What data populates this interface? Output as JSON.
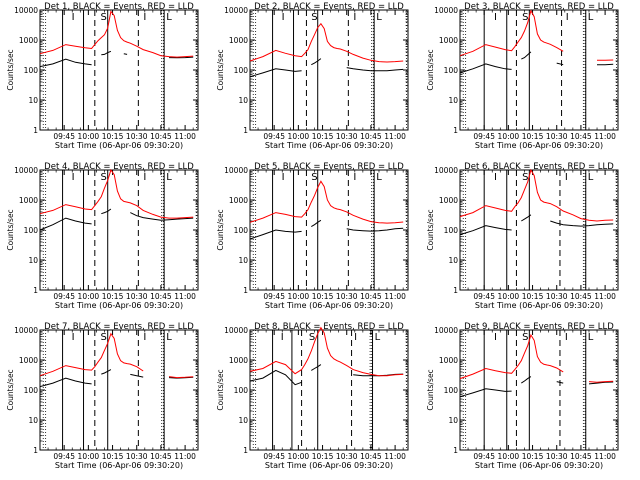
{
  "colors": {
    "events": "#000000",
    "lld": "#ff0000",
    "background": "#ffffff"
  },
  "shared": {
    "xlabel": "Start Time (06-Apr-06 09:30:20)",
    "ylabel": "Counts/sec",
    "x_ticks": [
      "09:45",
      "10:00",
      "10:15",
      "10:30",
      "10:45",
      "11:00"
    ],
    "y_ticks": [
      "1",
      "10",
      "100",
      "1000",
      "10000"
    ],
    "region_labels": [
      "I",
      "S",
      "I",
      "L"
    ]
  },
  "chart_data": [
    {
      "type": "line",
      "title": "Det 1, BLACK = Events, RED = LLD",
      "x": [
        "09:30",
        "09:38",
        "09:46",
        "09:52",
        "09:58",
        "10:02",
        "10:04",
        "10:06",
        "10:08",
        "10:10",
        "10:12",
        "10:14",
        "10:16",
        "10:18",
        "10:20",
        "10:22",
        "10:24",
        "10:26",
        "10:30",
        "10:34",
        "10:40",
        "10:45",
        "10:50",
        "10:55",
        "11:00",
        "11:05"
      ],
      "series": [
        {
          "name": "BLACK = Events",
          "values": [
            130,
            160,
            230,
            180,
            160,
            150,
            null,
            null,
            320,
            330,
            380,
            420,
            null,
            null,
            null,
            350,
            330,
            null,
            null,
            270,
            null,
            null,
            260,
            255,
            260,
            270
          ]
        },
        {
          "name": "RED = LLD",
          "values": [
            350,
            450,
            700,
            620,
            550,
            520,
            700,
            950,
            1200,
            1500,
            2500,
            9000,
            6500,
            2100,
            1200,
            950,
            850,
            780,
            620,
            480,
            380,
            300,
            280,
            270,
            280,
            290
          ]
        }
      ],
      "ylim": [
        1,
        10000
      ],
      "yscale": "log",
      "xlim": [
        "09:30",
        "11:08"
      ],
      "boundaries": [
        "09:44",
        "09:57",
        "10:04",
        "10:12",
        "10:31",
        "10:47"
      ]
    },
    {
      "type": "line",
      "title": "Det 2, BLACK = Events, RED = LLD",
      "x": [
        "09:30",
        "09:38",
        "09:46",
        "09:52",
        "09:58",
        "10:02",
        "10:04",
        "10:06",
        "10:08",
        "10:10",
        "10:12",
        "10:14",
        "10:16",
        "10:18",
        "10:20",
        "10:22",
        "10:24",
        "10:26",
        "10:30",
        "10:34",
        "10:40",
        "10:45",
        "10:50",
        "10:55",
        "11:00",
        "11:05"
      ],
      "series": [
        {
          "name": "BLACK = Events",
          "values": [
            60,
            80,
            110,
            100,
            90,
            95,
            null,
            null,
            150,
            170,
            200,
            240,
            null,
            null,
            null,
            null,
            null,
            null,
            120,
            110,
            100,
            95,
            95,
            95,
            100,
            105
          ]
        },
        {
          "name": "RED = LLD",
          "values": [
            200,
            280,
            450,
            360,
            300,
            280,
            360,
            480,
            900,
            1500,
            2600,
            3500,
            2400,
            900,
            650,
            560,
            520,
            500,
            420,
            330,
            250,
            210,
            190,
            185,
            190,
            200
          ]
        }
      ],
      "ylim": [
        1,
        10000
      ],
      "yscale": "log",
      "xlim": [
        "09:30",
        "11:08"
      ],
      "boundaries": [
        "09:44",
        "09:57",
        "10:05",
        "10:12",
        "10:31",
        "10:47"
      ]
    },
    {
      "type": "line",
      "title": "Det 3, BLACK = Events, RED = LLD",
      "x": [
        "09:30",
        "09:38",
        "09:46",
        "09:52",
        "09:58",
        "10:02",
        "10:04",
        "10:06",
        "10:08",
        "10:10",
        "10:12",
        "10:14",
        "10:16",
        "10:18",
        "10:20",
        "10:22",
        "10:24",
        "10:26",
        "10:30",
        "10:34",
        "10:40",
        "10:45",
        "10:50",
        "10:55",
        "11:00",
        "11:05"
      ],
      "series": [
        {
          "name": "BLACK = Events",
          "values": [
            80,
            110,
            160,
            130,
            110,
            105,
            null,
            null,
            230,
            260,
            320,
            400,
            null,
            null,
            null,
            null,
            null,
            null,
            170,
            150,
            null,
            null,
            null,
            150,
            150,
            155
          ]
        },
        {
          "name": "RED = LLD",
          "values": [
            300,
            420,
            700,
            580,
            480,
            440,
            600,
            850,
            1200,
            2000,
            3800,
            9500,
            6000,
            1600,
            1000,
            850,
            780,
            720,
            560,
            420,
            null,
            null,
            null,
            210,
            210,
            215
          ]
        }
      ],
      "ylim": [
        1,
        10000
      ],
      "yscale": "log",
      "xlim": [
        "09:30",
        "11:08"
      ],
      "boundaries": [
        "09:45",
        "09:59",
        "10:05",
        "10:13",
        "10:33",
        "10:48"
      ]
    },
    {
      "type": "line",
      "title": "Det 4, BLACK = Events, RED = LLD",
      "x": [
        "09:30",
        "09:38",
        "09:46",
        "09:52",
        "09:58",
        "10:02",
        "10:04",
        "10:06",
        "10:08",
        "10:10",
        "10:12",
        "10:14",
        "10:16",
        "10:18",
        "10:20",
        "10:22",
        "10:24",
        "10:26",
        "10:30",
        "10:34",
        "10:40",
        "10:45",
        "10:50",
        "10:55",
        "11:00",
        "11:05"
      ],
      "series": [
        {
          "name": "BLACK = Events",
          "values": [
            100,
            150,
            250,
            200,
            170,
            160,
            null,
            null,
            350,
            380,
            420,
            500,
            null,
            null,
            null,
            null,
            null,
            380,
            300,
            260,
            230,
            210,
            220,
            230,
            240,
            250
          ]
        },
        {
          "name": "RED = LLD",
          "values": [
            350,
            450,
            700,
            600,
            500,
            480,
            650,
            900,
            1300,
            2500,
            4500,
            10000,
            7000,
            2000,
            1100,
            900,
            850,
            800,
            650,
            450,
            330,
            270,
            250,
            250,
            260,
            270
          ]
        }
      ],
      "ylim": [
        1,
        10000
      ],
      "yscale": "log",
      "xlim": [
        "09:30",
        "11:08"
      ],
      "boundaries": [
        "09:44",
        "09:57",
        "10:04",
        "10:12",
        "10:31",
        "10:47"
      ]
    },
    {
      "type": "line",
      "title": "Det 5, BLACK = Events, RED = LLD",
      "x": [
        "09:30",
        "09:38",
        "09:46",
        "09:52",
        "09:58",
        "10:02",
        "10:04",
        "10:06",
        "10:08",
        "10:10",
        "10:12",
        "10:14",
        "10:16",
        "10:18",
        "10:20",
        "10:22",
        "10:24",
        "10:26",
        "10:30",
        "10:34",
        "10:40",
        "10:45",
        "10:50",
        "10:55",
        "11:00",
        "11:05"
      ],
      "series": [
        {
          "name": "BLACK = Events",
          "values": [
            50,
            70,
            100,
            90,
            85,
            90,
            null,
            null,
            130,
            150,
            180,
            210,
            null,
            null,
            null,
            null,
            null,
            null,
            110,
            100,
            95,
            92,
            95,
            100,
            110,
            115
          ]
        },
        {
          "name": "RED = LLD",
          "values": [
            180,
            250,
            380,
            330,
            280,
            270,
            350,
            480,
            850,
            1400,
            2600,
            4200,
            2800,
            1000,
            650,
            550,
            500,
            480,
            400,
            310,
            230,
            190,
            175,
            170,
            175,
            185
          ]
        }
      ],
      "ylim": [
        1,
        10000
      ],
      "yscale": "log",
      "xlim": [
        "09:30",
        "11:08"
      ],
      "boundaries": [
        "09:44",
        "09:57",
        "10:05",
        "10:12",
        "10:31",
        "10:47"
      ]
    },
    {
      "type": "line",
      "title": "Det 6, BLACK = Events, RED = LLD",
      "x": [
        "09:30",
        "09:38",
        "09:46",
        "09:52",
        "09:58",
        "10:02",
        "10:04",
        "10:06",
        "10:08",
        "10:10",
        "10:12",
        "10:14",
        "10:16",
        "10:18",
        "10:20",
        "10:22",
        "10:24",
        "10:26",
        "10:30",
        "10:34",
        "10:40",
        "10:45",
        "10:50",
        "10:55",
        "11:00",
        "11:05"
      ],
      "series": [
        {
          "name": "BLACK = Events",
          "values": [
            70,
            95,
            140,
            120,
            105,
            100,
            null,
            null,
            200,
            230,
            270,
            320,
            null,
            null,
            null,
            null,
            null,
            200,
            170,
            150,
            140,
            135,
            140,
            150,
            155,
            160
          ]
        },
        {
          "name": "RED = LLD",
          "values": [
            280,
            380,
            650,
            540,
            450,
            420,
            600,
            800,
            1200,
            2200,
            4000,
            10000,
            6500,
            1800,
            1000,
            850,
            800,
            760,
            600,
            430,
            320,
            240,
            210,
            200,
            210,
            215
          ]
        }
      ],
      "ylim": [
        1,
        10000
      ],
      "yscale": "log",
      "xlim": [
        "09:30",
        "11:08"
      ],
      "boundaries": [
        "09:45",
        "09:59",
        "10:05",
        "10:13",
        "10:32",
        "10:48"
      ]
    },
    {
      "type": "line",
      "title": "Det 7, BLACK = Events, RED = LLD",
      "x": [
        "09:30",
        "09:38",
        "09:46",
        "09:52",
        "09:58",
        "10:02",
        "10:04",
        "10:06",
        "10:08",
        "10:10",
        "10:12",
        "10:14",
        "10:16",
        "10:18",
        "10:20",
        "10:22",
        "10:24",
        "10:26",
        "10:30",
        "10:34",
        "10:40",
        "10:45",
        "10:50",
        "10:55",
        "11:00",
        "11:05"
      ],
      "series": [
        {
          "name": "BLACK = Events",
          "values": [
            130,
            170,
            250,
            200,
            170,
            160,
            null,
            null,
            340,
            370,
            420,
            480,
            null,
            null,
            null,
            null,
            null,
            330,
            300,
            270,
            null,
            null,
            260,
            250,
            255,
            265
          ]
        },
        {
          "name": "RED = LLD",
          "values": [
            300,
            420,
            650,
            560,
            480,
            460,
            600,
            850,
            1200,
            2100,
            3600,
            7500,
            5200,
            1600,
            950,
            800,
            760,
            730,
            600,
            430,
            null,
            null,
            280,
            260,
            265,
            275
          ]
        }
      ],
      "ylim": [
        1,
        10000
      ],
      "yscale": "log",
      "xlim": [
        "09:30",
        "11:08"
      ],
      "boundaries": [
        "09:44",
        "09:57",
        "10:04",
        "10:12",
        "10:31",
        "10:47"
      ]
    },
    {
      "type": "line",
      "title": "Det 8, BLACK = Events, RED = LLD",
      "x": [
        "09:30",
        "09:38",
        "09:46",
        "09:52",
        "09:58",
        "10:02",
        "10:04",
        "10:06",
        "10:08",
        "10:10",
        "10:12",
        "10:14",
        "10:16",
        "10:18",
        "10:20",
        "10:22",
        "10:24",
        "10:26",
        "10:30",
        "10:34",
        "10:40",
        "10:45",
        "10:50",
        "10:55",
        "11:00",
        "11:05"
      ],
      "series": [
        {
          "name": "BLACK = Events",
          "values": [
            200,
            250,
            450,
            320,
            150,
            180,
            null,
            null,
            450,
            520,
            600,
            700,
            null,
            null,
            null,
            null,
            null,
            null,
            null,
            320,
            300,
            300,
            300,
            310,
            330,
            340
          ]
        },
        {
          "name": "RED = LLD",
          "values": [
            420,
            520,
            900,
            700,
            350,
            480,
            700,
            1100,
            2000,
            4000,
            7500,
            12000,
            8000,
            2500,
            1400,
            1100,
            950,
            850,
            650,
            480,
            380,
            330,
            300,
            300,
            320,
            330
          ]
        }
      ],
      "ylim": [
        1,
        10000
      ],
      "yscale": "log",
      "xlim": [
        "09:30",
        "11:08"
      ],
      "boundaries": [
        "09:44",
        "09:56",
        "10:02",
        "10:12",
        "10:33",
        "10:46"
      ]
    },
    {
      "type": "line",
      "title": "Det 9, BLACK = Events, RED = LLD",
      "x": [
        "09:30",
        "09:38",
        "09:46",
        "09:52",
        "09:58",
        "10:02",
        "10:04",
        "10:06",
        "10:08",
        "10:10",
        "10:12",
        "10:14",
        "10:16",
        "10:18",
        "10:20",
        "10:22",
        "10:24",
        "10:26",
        "10:30",
        "10:34",
        "10:40",
        "10:45",
        "10:50",
        "10:55",
        "11:00",
        "11:05"
      ],
      "series": [
        {
          "name": "BLACK = Events",
          "values": [
            60,
            80,
            110,
            100,
            90,
            92,
            null,
            null,
            170,
            200,
            240,
            280,
            null,
            null,
            null,
            null,
            null,
            null,
            190,
            170,
            null,
            null,
            160,
            170,
            180,
            185
          ]
        },
        {
          "name": "RED = LLD",
          "values": [
            240,
            340,
            520,
            440,
            380,
            360,
            480,
            650,
            950,
            1700,
            3000,
            6800,
            4500,
            1300,
            850,
            720,
            680,
            650,
            540,
            400,
            null,
            null,
            190,
            180,
            190,
            195
          ]
        }
      ],
      "ylim": [
        1,
        10000
      ],
      "yscale": "log",
      "xlim": [
        "09:30",
        "11:08"
      ],
      "boundaries": [
        "09:45",
        "09:59",
        "10:05",
        "10:13",
        "10:32",
        "10:48"
      ]
    }
  ]
}
